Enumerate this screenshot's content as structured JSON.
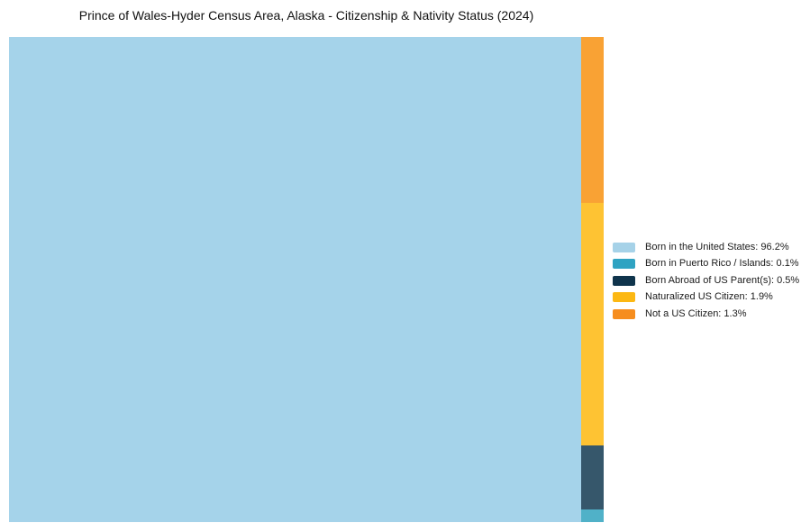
{
  "title": "Prince of Wales-Hyder Census Area, Alaska - Citizenship & Nativity Status (2024)",
  "chart_data": {
    "type": "treemap",
    "title": "Prince of Wales-Hyder Census Area, Alaska - Citizenship & Nativity Status (2024)",
    "unit": "%",
    "categories": [
      "Born in the United States",
      "Born in Puerto Rico / Islands",
      "Born Abroad of US Parent(s)",
      "Naturalized US Citizen",
      "Not a US Citizen"
    ],
    "values": [
      96.2,
      0.1,
      0.5,
      1.9,
      1.3
    ],
    "items": [
      {
        "label": "Born in the United States",
        "value": 96.2,
        "legend_label": "Born in the United States: 96.2%",
        "legend_color": "#a6d2e8",
        "chart_fill": "#a5d3ea"
      },
      {
        "label": "Born in Puerto Rico / Islands",
        "value": 0.1,
        "legend_label": "Born in Puerto Rico / Islands: 0.1%",
        "legend_color": "#2fa3c2",
        "chart_fill": "#50b1c8"
      },
      {
        "label": "Born Abroad of US Parent(s)",
        "value": 0.5,
        "legend_label": "Born Abroad of US Parent(s): 0.5%",
        "legend_color": "#0f344c",
        "chart_fill": "#36576b"
      },
      {
        "label": "Naturalized US Citizen",
        "value": 1.9,
        "legend_label": "Naturalized US Citizen: 1.9%",
        "legend_color": "#fcb813",
        "chart_fill": "#fec333"
      },
      {
        "label": "Not a US Citizen",
        "value": 1.3,
        "legend_label": "Not a US Citizen: 1.3%",
        "legend_color": "#f68d1e",
        "chart_fill": "#f9a234"
      }
    ],
    "layout": {
      "main_index": 0,
      "column_top_to_bottom": [
        4,
        3,
        2,
        1
      ],
      "legend_position": "right",
      "grid": false
    },
    "background_color": "#ffffff"
  }
}
